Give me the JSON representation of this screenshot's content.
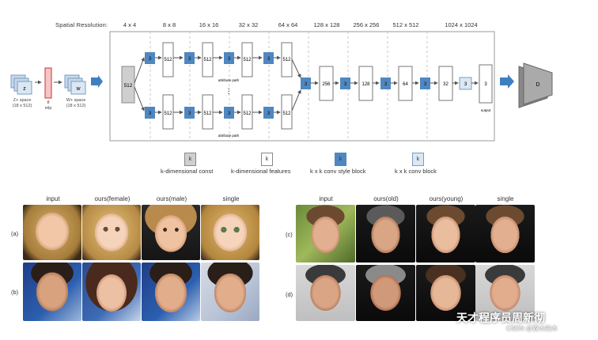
{
  "diagram": {
    "resolution_title": "Spatial Resolution:",
    "resolutions": [
      "4 x 4",
      "8 x 8",
      "16 x 16",
      "32 x 32",
      "64 x 64",
      "128 x 128",
      "256 x 256",
      "512 x 512",
      "1024 x 1024"
    ],
    "z_box": "z",
    "z_space": "Z+ space",
    "z_dims": "(18 x 512)",
    "mlp_num": "8",
    "mlp": "mlp",
    "w_box": "w",
    "w_space": "W+ space",
    "w_dims": "(18 x 512)",
    "const_val": "512",
    "kernel": "3",
    "feat": "512",
    "feat_256": "256",
    "feat_128": "128",
    "feat_64": "64",
    "feat_32": "32",
    "feat_3": "3",
    "attr_path": "attribute path",
    "output": "output",
    "disc": "D",
    "dots": "⋮"
  },
  "legend": {
    "k": "k",
    "const": "k-dimensional const",
    "features": "k-dimensional features",
    "style_block": "k x k  conv style block",
    "conv_block": "k x k  conv block"
  },
  "left_grid": {
    "columns": [
      "input",
      "ours(female)",
      "ours(male)",
      "single"
    ],
    "rows": [
      "(a)",
      "(b)"
    ]
  },
  "right_grid": {
    "columns": [
      "input",
      "ours(old)",
      "ours(young)",
      "single"
    ],
    "rows": [
      "(c)",
      "(d)"
    ]
  },
  "watermark": {
    "line1": "天才程序员周新彻",
    "line2": "CSDN @双木的木"
  },
  "colors": {
    "style_block": "#4f87c0",
    "const_block": "#cfcfcf",
    "arrow": "#3f7fbf"
  }
}
